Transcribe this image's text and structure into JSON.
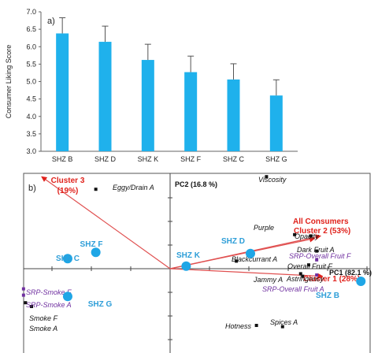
{
  "chart_data": [
    {
      "type": "bar",
      "panel_label": "a)",
      "categories": [
        "SHZ B",
        "SHZ D",
        "SHZ K",
        "SHZ F",
        "SHZ C",
        "SHZ G"
      ],
      "values": [
        6.38,
        6.14,
        5.62,
        5.27,
        5.06,
        4.6
      ],
      "errors": [
        0.45,
        0.45,
        0.45,
        0.46,
        0.45,
        0.45
      ],
      "ylabel": "Consumer Liking Score",
      "ylim": [
        3.0,
        7.0
      ],
      "yticks": [
        "3.0",
        "3.5",
        "4.0",
        "4.5",
        "5.0",
        "5.5",
        "6.0",
        "6.5",
        "7.0"
      ],
      "bar_color": "#1fb1ec"
    },
    {
      "type": "scatter",
      "panel_label": "b)",
      "xlabel": "PC1 (82.1 %)",
      "ylabel": "PC2 (16.8 %)",
      "xlim": [
        -1,
        1
      ],
      "ylim": [
        -1,
        1
      ],
      "products": [
        {
          "label": "SHZ B",
          "x": 0.95,
          "y": -0.1
        },
        {
          "label": "SHZ D",
          "x": 0.4,
          "y": 0.12
        },
        {
          "label": "SHZ K",
          "x": 0.08,
          "y": 0.02
        },
        {
          "label": "SHZ F",
          "x": -0.37,
          "y": 0.13
        },
        {
          "label": "SHZ C",
          "x": -0.51,
          "y": 0.08
        },
        {
          "label": "SHZ G",
          "x": -0.51,
          "y": -0.22
        }
      ],
      "attributes": [
        {
          "label": "Viscosity",
          "x": 0.48,
          "y": 0.73,
          "color": "black"
        },
        {
          "label": "Eggy/Drain A",
          "x": -0.37,
          "y": 0.63,
          "color": "black"
        },
        {
          "label": "Purple",
          "x": 0.62,
          "y": 0.27,
          "color": "black"
        },
        {
          "label": "Opacity",
          "x": 0.7,
          "y": 0.26,
          "color": "black"
        },
        {
          "label": "Dark Fruit A",
          "x": 0.73,
          "y": 0.14,
          "color": "black"
        },
        {
          "label": "Blackcurrant A",
          "x": 0.33,
          "y": 0.06,
          "color": "black"
        },
        {
          "label": "Overall Fruit F",
          "x": 0.69,
          "y": 0.03,
          "color": "black"
        },
        {
          "label": "Astringency",
          "x": 0.65,
          "y": -0.04,
          "color": "black"
        },
        {
          "label": "Jammy A",
          "x": 0.66,
          "y": -0.06,
          "color": "black"
        },
        {
          "label": "Hotness",
          "x": 0.43,
          "y": -0.45,
          "color": "black"
        },
        {
          "label": "Spices A",
          "x": 0.56,
          "y": -0.46,
          "color": "black"
        },
        {
          "label": "Smoke F",
          "x": -0.72,
          "y": -0.27,
          "color": "black"
        },
        {
          "label": "Smoke A",
          "x": -0.69,
          "y": -0.3,
          "color": "black"
        },
        {
          "label": "SRP-Overall Fruit F",
          "x": 0.73,
          "y": 0.07,
          "color": "purple"
        },
        {
          "label": "SRP-Overall Fruit A",
          "x": 0.73,
          "y": -0.05,
          "color": "purple"
        },
        {
          "label": "SRP-Smoke F",
          "x": -0.73,
          "y": -0.16,
          "color": "purple"
        },
        {
          "label": "SRP-Smoke A",
          "x": -0.73,
          "y": -0.21,
          "color": "purple"
        }
      ],
      "vectors": [
        {
          "label": "All Consumers",
          "x": 0.72,
          "y": 0.24
        },
        {
          "label": "Cluster 2 (53%)",
          "x": 0.75,
          "y": 0.26
        },
        {
          "label": "Cluster 1 (28%)",
          "x": 0.76,
          "y": -0.06
        },
        {
          "label": "Cluster 3",
          "sub": "(19%)",
          "x": -0.64,
          "y": 0.73
        }
      ]
    }
  ]
}
